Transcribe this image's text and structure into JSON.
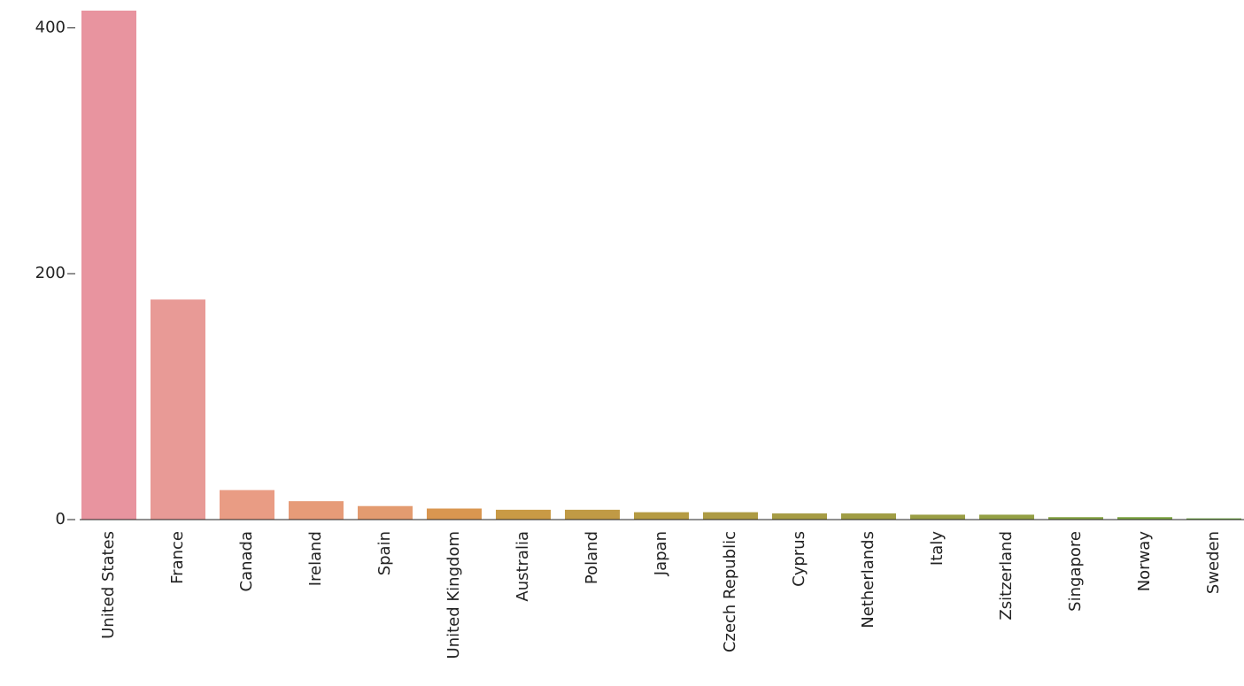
{
  "chart_data": {
    "type": "bar",
    "categories": [
      "United States",
      "France",
      "Canada",
      "Ireland",
      "Spain",
      "United Kingdom",
      "Australia",
      "Poland",
      "Japan",
      "Czech Republic",
      "Cyprus",
      "Netherlands",
      "Italy",
      "Zsitzerland",
      "Singapore",
      "Norway",
      "Sweden"
    ],
    "values": [
      414,
      179,
      24,
      15,
      11,
      9,
      8,
      8,
      6,
      6,
      5,
      5,
      4,
      4,
      2,
      2,
      1
    ],
    "colors": [
      "#e8949f",
      "#e89a96",
      "#e99c84",
      "#e69b78",
      "#e39b70",
      "#d99650",
      "#c99a45",
      "#c09a45",
      "#b59b43",
      "#ad9b44",
      "#a69c44",
      "#a09d44",
      "#9a9e45",
      "#94a045",
      "#86a344",
      "#7ea543",
      "#6ea842"
    ],
    "ylim": [
      0,
      414
    ],
    "yticks": [
      0,
      200,
      400
    ]
  }
}
